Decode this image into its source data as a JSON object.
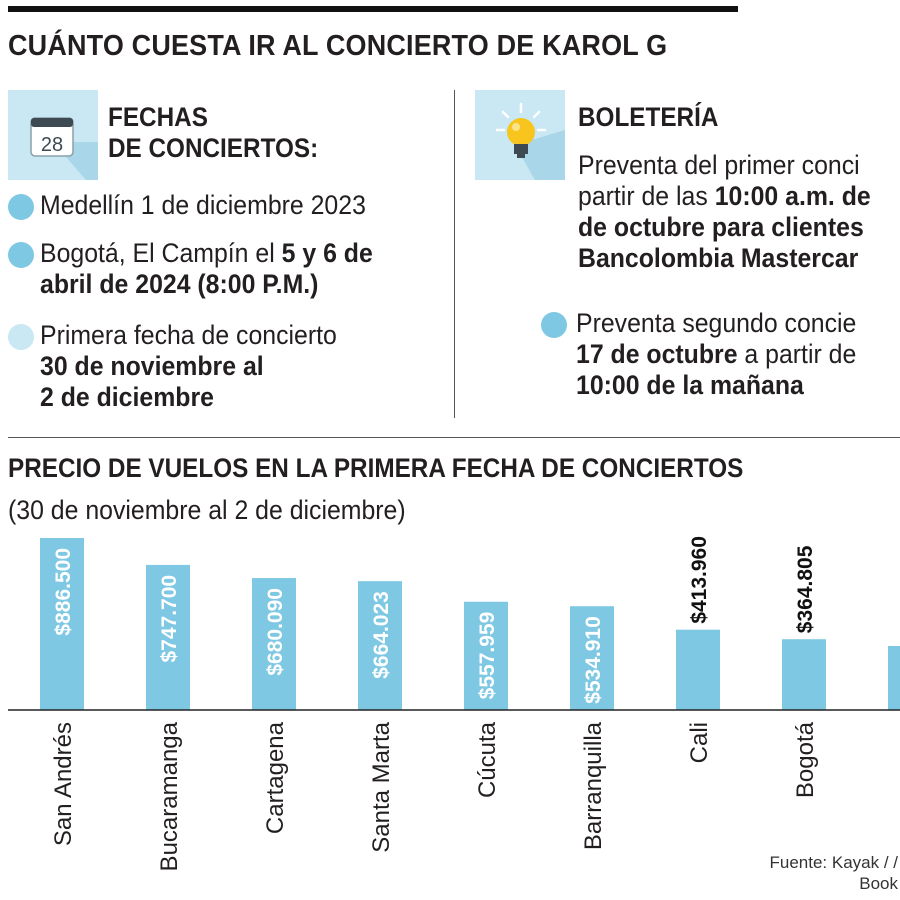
{
  "header": {
    "title": "CUÁNTO CUESTA IR AL CONCIERTO DE KAROL G"
  },
  "fechas": {
    "icon": "calendar-icon",
    "calendar_day": "28",
    "title": "FECHAS\nDE CONCIERTOS:",
    "items": [
      {
        "text": "Medellín 1 de diciembre 2023",
        "bold": "",
        "rest": "",
        "line2": "",
        "line3": ""
      },
      {
        "text": "Bogotá, El Campín el ",
        "bold": "5 y 6 de",
        "rest": "",
        "line2": "abril de 2024 (8:00 P.M.)",
        "line3": ""
      },
      {
        "text": "Primera fecha de concierto",
        "bold": "",
        "rest": "",
        "line2": "30 de noviembre al",
        "line3": "2 de diciembre"
      }
    ]
  },
  "boleteria": {
    "icon": "lightbulb-icon",
    "title": "BOLETERÍA",
    "items": [
      {
        "line1": "Preventa del primer conci",
        "line2_pre": "partir de las ",
        "line2_bold": "10:00 a.m. de",
        "line3": "de octubre para clientes",
        "line4": "Bancolombia Mastercar"
      },
      {
        "line1": "Preventa segundo concie",
        "line2_bold": "17 de octubre",
        "line2_rest": " a partir de",
        "line3": "10:00 de la mañana"
      }
    ]
  },
  "chart_title": "PRECIO DE VUELOS EN LA PRIMERA FECHA DE CONCIERTOS",
  "chart_subtitle": "(30 de noviembre al 2 de diciembre)",
  "source": "Fuente: Kayak / / Book",
  "colors": {
    "bar": "#7ec8e3",
    "bullet": "#7ec8e3",
    "bullet_light": "#c9e8f3",
    "icon_bg": "#c9e8f3"
  },
  "chart_data": {
    "type": "bar",
    "title": "PRECIO DE VUELOS EN LA PRIMERA FECHA DE CONCIERTOS",
    "subtitle": "(30 de noviembre al 2 de diciembre)",
    "categories": [
      "San Andrés",
      "Bucaramanga",
      "Cartagena",
      "Santa Marta",
      "Cúcuta",
      "Barranquilla",
      "Cali",
      "Bogotá",
      ""
    ],
    "values": [
      886500,
      747700,
      680090,
      664023,
      557959,
      534910,
      413960,
      364805,
      330000
    ],
    "labels": [
      "$886.500",
      "$747.700",
      "$680.090",
      "$664.023",
      "$557.959",
      "$534.910",
      "$413.960",
      "$364.805",
      ""
    ],
    "label_inside": [
      true,
      true,
      true,
      true,
      true,
      true,
      false,
      false,
      false
    ],
    "ylim": [
      0,
      886500
    ],
    "xlabel": "",
    "ylabel": "",
    "grid": false,
    "legend": "none"
  }
}
